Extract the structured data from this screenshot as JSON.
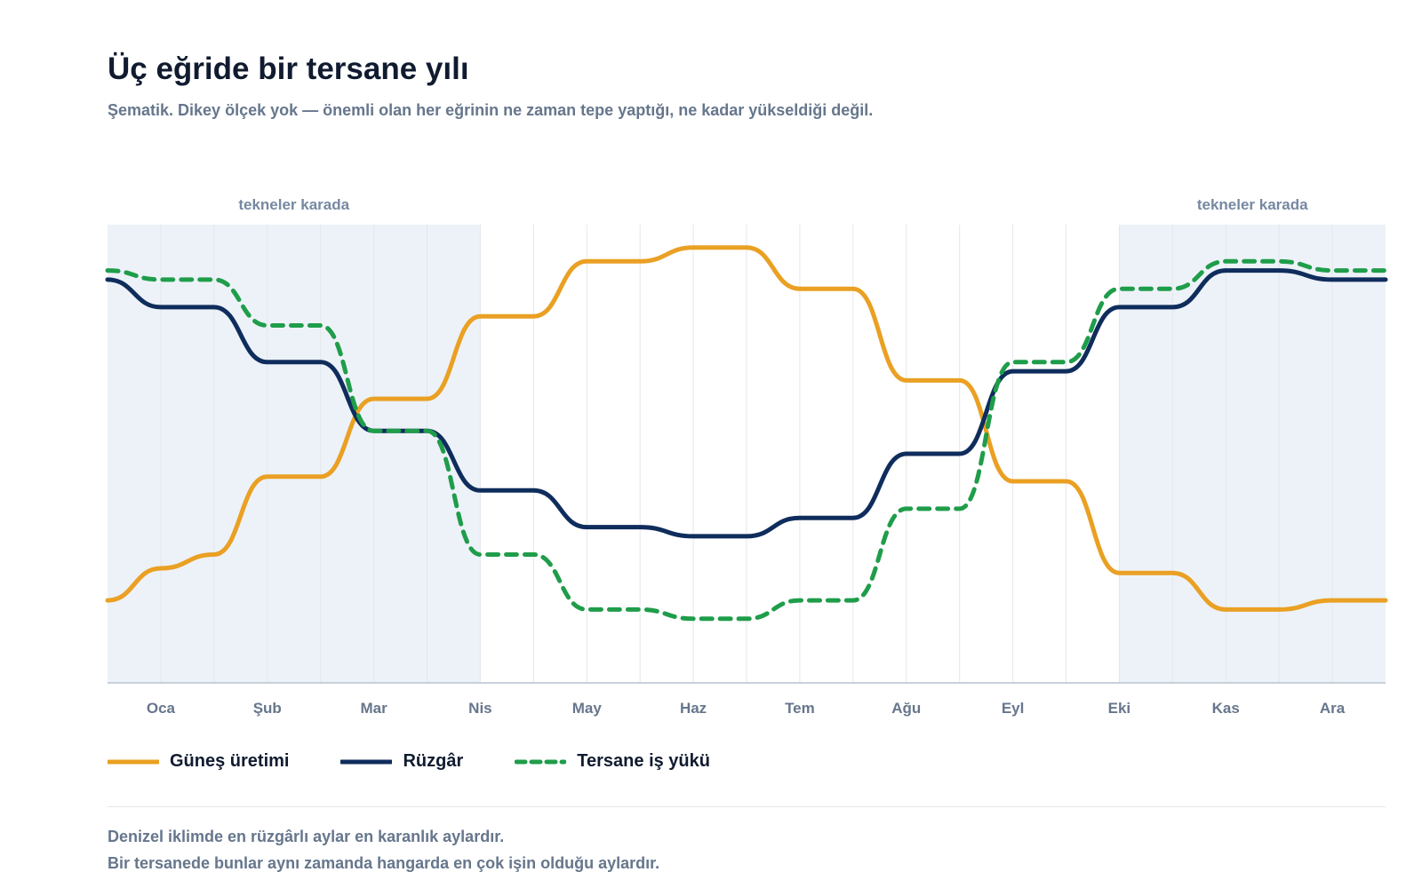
{
  "chart_data": {
    "type": "line",
    "title": "Üç eğride bir tersane yılı",
    "subtitle": "Şematik. Dikey ölçek yok — önemli olan her eğrinin ne zaman tepe yaptığı, ne kadar yükseldiği değil.",
    "categories": [
      "Oca",
      "Şub",
      "Mar",
      "Nis",
      "May",
      "Haz",
      "Tem",
      "Ağu",
      "Eyl",
      "Eki",
      "Kas",
      "Ara"
    ],
    "x": [
      0,
      0.5,
      1,
      1.5,
      2,
      2.5,
      3,
      3.5,
      4,
      4.5,
      5,
      5.5,
      6,
      6.5,
      7,
      7.5,
      8,
      8.5,
      9,
      9.5,
      10,
      10.5,
      11,
      11.5,
      12
    ],
    "ylim": [
      0,
      100
    ],
    "y_axis_visible": false,
    "grid": "vertical",
    "legend_position": "bottom-left",
    "series": [
      {
        "name": "Güneş üretimi",
        "color": "#eaa023",
        "dash": "solid",
        "values": [
          18,
          25,
          28,
          45,
          45,
          62,
          62,
          80,
          80,
          92,
          92,
          95,
          95,
          86,
          86,
          66,
          66,
          44,
          44,
          24,
          24,
          16,
          16,
          18,
          18
        ]
      },
      {
        "name": "Rüzgâr",
        "color": "#0f2d5c",
        "dash": "solid",
        "values": [
          88,
          82,
          82,
          70,
          70,
          55,
          55,
          42,
          42,
          34,
          34,
          32,
          32,
          36,
          36,
          50,
          50,
          68,
          68,
          82,
          82,
          90,
          90,
          88,
          88
        ]
      },
      {
        "name": "Tersane iş yükü",
        "color": "#1f9d4a",
        "dash": "dashed",
        "values": [
          90,
          88,
          88,
          78,
          78,
          55,
          55,
          28,
          28,
          16,
          16,
          14,
          14,
          18,
          18,
          38,
          38,
          70,
          70,
          86,
          86,
          92,
          92,
          90,
          90
        ]
      }
    ],
    "shaded_regions": [
      {
        "x_start": 0,
        "x_end": 3.5,
        "label": "tekneler karada",
        "color": "#edf2f8"
      },
      {
        "x_start": 9.5,
        "x_end": 12,
        "label": "tekneler karada",
        "color": "#edf2f8"
      }
    ],
    "footnotes": [
      "Denizel iklimde en rüzgârlı aylar en karanlık aylardır.",
      "Bir tersanede bunlar aynı zamanda hangarda en çok işin olduğu aylardır."
    ]
  }
}
